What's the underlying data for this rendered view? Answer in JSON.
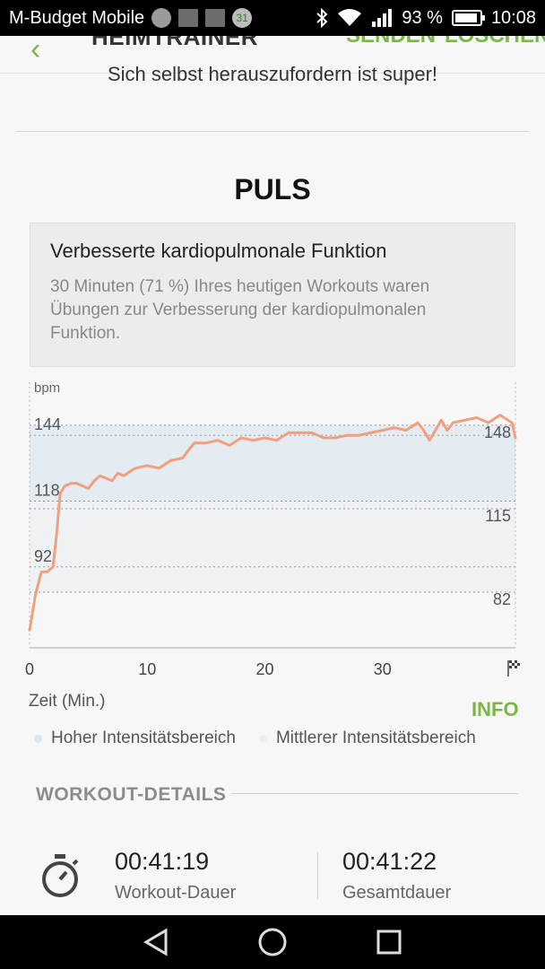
{
  "status_bar": {
    "carrier": "M-Budget Mobile",
    "notification_badge": "31",
    "battery": "93 %",
    "time": "10:08"
  },
  "app_bar": {
    "title": "HEIMTRAINER",
    "send_label": "SENDEN",
    "delete_label": "LÖSCHEN"
  },
  "motivation": "Sich selbst herauszufordern ist super!",
  "section_title": "PULS",
  "info_box": {
    "title": "Verbesserte kardiopulmonale Funktion",
    "text": "30 Minuten (71 %) Ihres heutigen Workouts waren Übungen zur Verbesserung der kardiopulmonalen Funktion."
  },
  "chart_data": {
    "type": "line",
    "ylabel": "bpm",
    "xlabel": "Zeit (Min.)",
    "xlim": [
      0,
      41.3
    ],
    "ylim": [
      60,
      165
    ],
    "x_ticks": [
      "0",
      "10",
      "20",
      "30"
    ],
    "y_ticks_left": [
      144,
      118,
      92
    ],
    "y_ticks_right": [
      148,
      115,
      82
    ],
    "bands": [
      {
        "name": "Hoher Intensitätsbereich",
        "from": 118,
        "to": 148,
        "color": "#e4ebf1"
      },
      {
        "name": "Mittlerer Intensitätsbereich",
        "from": 82,
        "to": 118,
        "color": "#eef2f4"
      }
    ],
    "series": [
      {
        "color": "#f0a07e",
        "x": [
          0,
          0.5,
          1,
          1.5,
          2,
          2.3,
          2.6,
          3,
          3.5,
          4,
          5,
          5.5,
          6,
          7,
          7.5,
          8,
          9,
          10,
          11,
          12,
          13,
          13.5,
          14,
          15,
          16,
          17,
          18,
          19,
          20,
          21,
          22,
          23,
          24,
          25,
          26,
          27,
          28,
          29,
          30,
          31,
          32,
          33,
          33.5,
          34,
          35,
          35.5,
          36,
          37,
          38,
          39,
          40,
          41,
          41.3
        ],
        "y": [
          67,
          81,
          90,
          90,
          92,
          105,
          121,
          124,
          125,
          125,
          123,
          126,
          128,
          126,
          129,
          128,
          131,
          132,
          131,
          134,
          135,
          138,
          141,
          141,
          142,
          140,
          143,
          142,
          143,
          142,
          145,
          145,
          145,
          143,
          143,
          144,
          144,
          145,
          146,
          147,
          146,
          149,
          146,
          142,
          150,
          146,
          149,
          150,
          151,
          149,
          152,
          149,
          143
        ]
      }
    ]
  },
  "legend": {
    "high": "Hoher Intensitätsbereich",
    "mid": "Mittlerer Intensitätsbereich"
  },
  "info_link": "INFO",
  "details": {
    "heading": "WORKOUT-DETAILS",
    "workout_duration": "00:41:19",
    "workout_duration_label": "Workout-Dauer",
    "total_duration": "00:41:22",
    "total_duration_label": "Gesamtdauer"
  }
}
